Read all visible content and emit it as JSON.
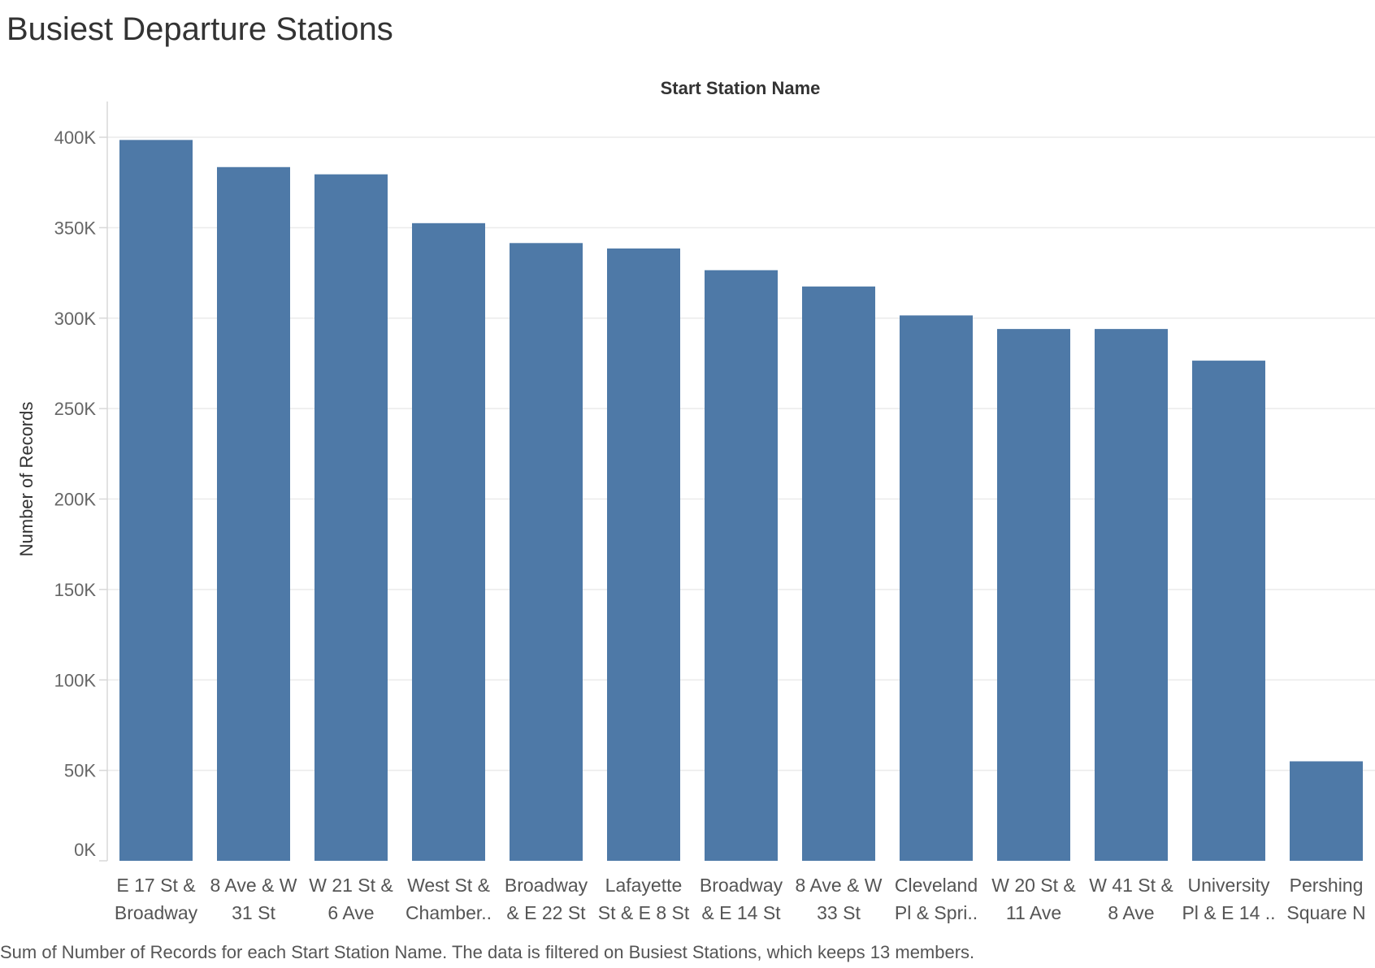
{
  "title": "Busiest Departure Stations",
  "caption": "Sum of Number of Records for each Start Station Name. The data is filtered on Busiest Stations, which keeps 13 members.",
  "colors": {
    "bar": "#4e79a7",
    "grid": "#ebebeb",
    "axis": "#d8d8d8"
  },
  "chart_data": {
    "type": "bar",
    "xlabel": "Start Station Name",
    "ylabel": "Number of Records",
    "ylim": [
      0,
      400000
    ],
    "yticks": [
      0,
      50000,
      100000,
      150000,
      200000,
      250000,
      300000,
      350000,
      400000
    ],
    "ytick_labels": [
      "0K",
      "50K",
      "100K",
      "150K",
      "200K",
      "250K",
      "300K",
      "350K",
      "400K"
    ],
    "grid": true,
    "categories": [
      [
        "E 17 St &",
        "Broadway"
      ],
      [
        "8 Ave & W",
        "31 St"
      ],
      [
        "W 21 St &",
        "6 Ave"
      ],
      [
        "West St &",
        "Chamber.."
      ],
      [
        "Broadway",
        "& E 22 St"
      ],
      [
        "Lafayette",
        "St & E 8 St"
      ],
      [
        "Broadway",
        "& E 14 St"
      ],
      [
        "8 Ave & W",
        "33 St"
      ],
      [
        "Cleveland",
        "Pl & Spri.."
      ],
      [
        "W 20 St &",
        "11 Ave"
      ],
      [
        "W 41 St &",
        "8 Ave"
      ],
      [
        "University",
        "Pl & E 14 .."
      ],
      [
        "Pershing",
        "Square N"
      ]
    ],
    "values": [
      398500,
      383500,
      379500,
      352500,
      341500,
      338500,
      326500,
      317500,
      301500,
      294000,
      294000,
      276500,
      55000
    ]
  }
}
